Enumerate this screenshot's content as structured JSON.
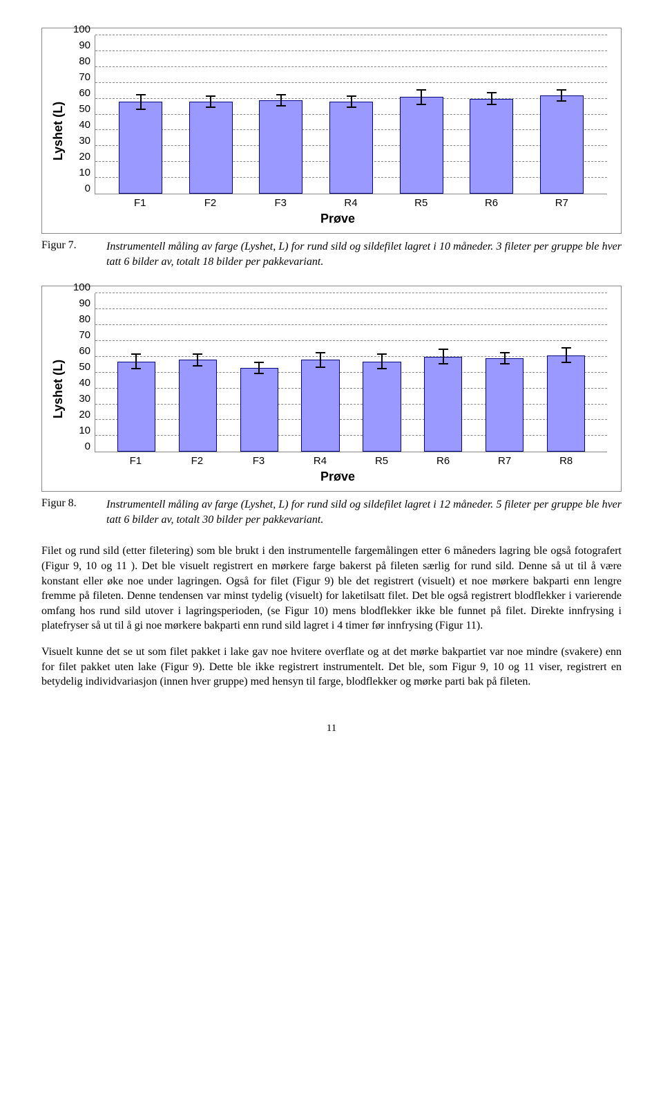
{
  "chart7": {
    "ylabel": "Lyshet (L)",
    "xlabel": "Prøve",
    "ylim": [
      0,
      100
    ],
    "ytick_step": 10,
    "yticks": [
      0,
      10,
      20,
      30,
      40,
      50,
      60,
      70,
      80,
      90,
      100
    ],
    "bar_fill": "#9999ff",
    "bar_border": "#000080",
    "grid_color": "#888888",
    "background": "#ffffff",
    "categories": [
      "F1",
      "F2",
      "F3",
      "R4",
      "R5",
      "R6",
      "R7"
    ],
    "values": [
      58,
      58,
      59,
      58,
      61,
      60,
      62
    ],
    "errors": [
      5,
      4,
      4,
      4,
      5,
      4,
      4
    ],
    "label_fontsize": 18,
    "tick_fontsize": 15
  },
  "caption7": {
    "label": "Figur 7.",
    "text": "Instrumentell måling av farge (Lyshet, L) for rund sild og sildefilet lagret i 10 måneder. 3 fileter per gruppe ble hver tatt 6 bilder av, totalt 18 bilder per pakkevariant."
  },
  "chart8": {
    "ylabel": "Lyshet (L)",
    "xlabel": "Prøve",
    "ylim": [
      0,
      100
    ],
    "ytick_step": 10,
    "yticks": [
      0,
      10,
      20,
      30,
      40,
      50,
      60,
      70,
      80,
      90,
      100
    ],
    "bar_fill": "#9999ff",
    "bar_border": "#000080",
    "grid_color": "#888888",
    "background": "#ffffff",
    "categories": [
      "F1",
      "F2",
      "F3",
      "R4",
      "R5",
      "R6",
      "R7",
      "R8"
    ],
    "values": [
      57,
      58,
      53,
      58,
      57,
      60,
      59,
      61
    ],
    "errors": [
      5,
      4,
      4,
      5,
      5,
      5,
      4,
      5
    ],
    "label_fontsize": 18,
    "tick_fontsize": 15
  },
  "caption8": {
    "label": "Figur 8.",
    "text": "Instrumentell måling av farge (Lyshet, L) for rund sild og sildefilet lagret i 12 måneder. 5 fileter per gruppe ble hver tatt 6 bilder av, totalt 30 bilder per pakkevariant."
  },
  "para1": "Filet og rund sild (etter filetering) som ble brukt i den instrumentelle fargemålingen etter 6 måneders lagring ble også fotografert (Figur 9, 10 og 11 ). Det ble visuelt registrert en mørkere farge bakerst på fileten særlig for rund sild. Denne så ut til å være konstant eller øke noe under lagringen. Også for filet (Figur 9) ble det registrert (visuelt) et noe mørkere bakparti enn lengre fremme på fileten. Denne tendensen var minst tydelig (visuelt) for laketilsatt filet. Det ble også registrert blodflekker i varierende omfang hos rund sild utover i lagringsperioden, (se Figur 10) mens blodflekker ikke ble funnet på filet. Direkte innfrysing i platefryser så ut til å gi noe mørkere bakparti enn rund sild lagret i 4 timer før innfrysing (Figur  11).",
  "para2": "Visuelt kunne det se ut som filet pakket i lake gav noe hvitere overflate og at det mørke bakpartiet var noe mindre (svakere) enn for filet pakket uten lake (Figur 9). Dette ble ikke registrert instrumentelt. Det ble, som Figur 9, 10 og 11 viser, registrert en betydelig individvariasjon (innen hver gruppe) med hensyn til farge, blodflekker og mørke parti bak på fileten.",
  "page_number": "11"
}
